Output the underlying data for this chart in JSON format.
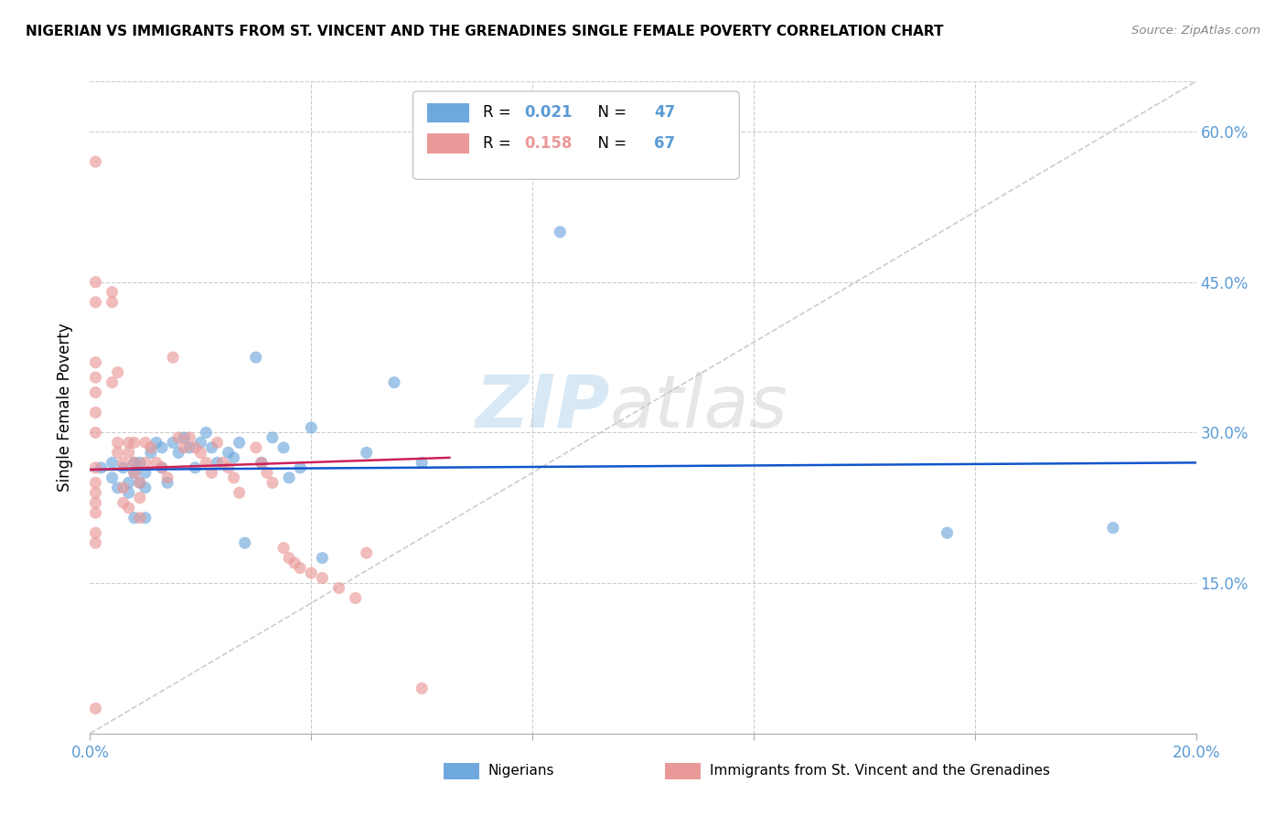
{
  "title": "NIGERIAN VS IMMIGRANTS FROM ST. VINCENT AND THE GRENADINES SINGLE FEMALE POVERTY CORRELATION CHART",
  "source": "Source: ZipAtlas.com",
  "xlabel_nigerians": "Nigerians",
  "xlabel_immigrants": "Immigrants from St. Vincent and the Grenadines",
  "ylabel": "Single Female Poverty",
  "xlim": [
    0.0,
    0.2
  ],
  "ylim": [
    0.0,
    0.65
  ],
  "blue_R": 0.021,
  "blue_N": 47,
  "pink_R": 0.158,
  "pink_N": 67,
  "blue_color": "#6fa8dc",
  "pink_color": "#ea9999",
  "blue_line_color": "#1155cc",
  "pink_line_color": "#cc2255",
  "diagonal_color": "#cccccc",
  "watermark_zip": "ZIP",
  "watermark_atlas": "atlas",
  "blue_points_x": [
    0.002,
    0.004,
    0.004,
    0.005,
    0.006,
    0.007,
    0.007,
    0.008,
    0.008,
    0.008,
    0.009,
    0.009,
    0.01,
    0.01,
    0.01,
    0.011,
    0.012,
    0.013,
    0.013,
    0.014,
    0.015,
    0.016,
    0.017,
    0.018,
    0.019,
    0.02,
    0.021,
    0.022,
    0.023,
    0.025,
    0.026,
    0.027,
    0.028,
    0.03,
    0.031,
    0.033,
    0.035,
    0.036,
    0.038,
    0.04,
    0.042,
    0.05,
    0.055,
    0.06,
    0.085,
    0.155,
    0.185
  ],
  "blue_points_y": [
    0.265,
    0.27,
    0.255,
    0.245,
    0.265,
    0.25,
    0.24,
    0.27,
    0.26,
    0.215,
    0.27,
    0.25,
    0.26,
    0.245,
    0.215,
    0.28,
    0.29,
    0.285,
    0.265,
    0.25,
    0.29,
    0.28,
    0.295,
    0.285,
    0.265,
    0.29,
    0.3,
    0.285,
    0.27,
    0.28,
    0.275,
    0.29,
    0.19,
    0.375,
    0.27,
    0.295,
    0.285,
    0.255,
    0.265,
    0.305,
    0.175,
    0.28,
    0.35,
    0.27,
    0.5,
    0.2,
    0.205
  ],
  "pink_points_x": [
    0.001,
    0.001,
    0.001,
    0.001,
    0.001,
    0.001,
    0.001,
    0.001,
    0.001,
    0.001,
    0.001,
    0.001,
    0.001,
    0.001,
    0.001,
    0.001,
    0.004,
    0.004,
    0.004,
    0.005,
    0.005,
    0.005,
    0.006,
    0.006,
    0.006,
    0.007,
    0.007,
    0.007,
    0.008,
    0.008,
    0.008,
    0.009,
    0.009,
    0.009,
    0.01,
    0.01,
    0.011,
    0.012,
    0.013,
    0.014,
    0.015,
    0.016,
    0.017,
    0.018,
    0.019,
    0.02,
    0.021,
    0.022,
    0.023,
    0.024,
    0.025,
    0.026,
    0.027,
    0.03,
    0.031,
    0.032,
    0.033,
    0.035,
    0.036,
    0.037,
    0.038,
    0.04,
    0.042,
    0.045,
    0.048,
    0.05,
    0.06
  ],
  "pink_points_y": [
    0.57,
    0.45,
    0.43,
    0.37,
    0.355,
    0.34,
    0.32,
    0.3,
    0.265,
    0.25,
    0.24,
    0.23,
    0.22,
    0.2,
    0.19,
    0.025,
    0.44,
    0.43,
    0.35,
    0.36,
    0.29,
    0.28,
    0.27,
    0.245,
    0.23,
    0.29,
    0.28,
    0.225,
    0.29,
    0.27,
    0.26,
    0.25,
    0.235,
    0.215,
    0.29,
    0.27,
    0.285,
    0.27,
    0.265,
    0.255,
    0.375,
    0.295,
    0.285,
    0.295,
    0.285,
    0.28,
    0.27,
    0.26,
    0.29,
    0.27,
    0.265,
    0.255,
    0.24,
    0.285,
    0.27,
    0.26,
    0.25,
    0.185,
    0.175,
    0.17,
    0.165,
    0.16,
    0.155,
    0.145,
    0.135,
    0.18,
    0.045
  ]
}
